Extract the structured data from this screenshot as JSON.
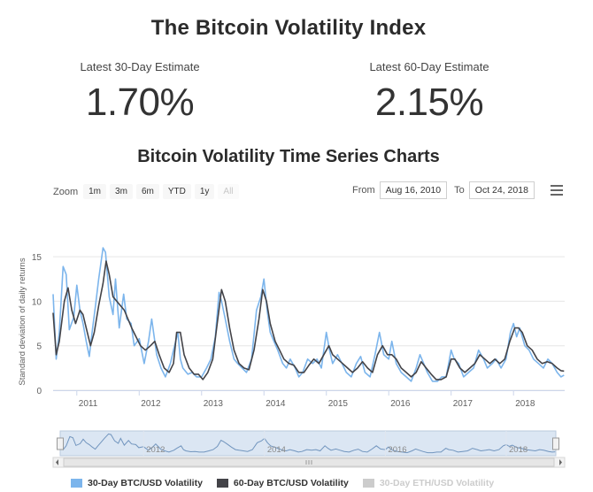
{
  "title": "The Bitcoin Volatility Index",
  "stats": [
    {
      "label": "Latest 30-Day Estimate",
      "value": "1.70%"
    },
    {
      "label": "Latest 60-Day Estimate",
      "value": "2.15%"
    }
  ],
  "subtitle": "Bitcoin Volatility Time Series Charts",
  "zoom": {
    "label": "Zoom",
    "buttons": [
      "1m",
      "3m",
      "6m",
      "YTD",
      "1y",
      "All"
    ]
  },
  "range": {
    "from_label": "From",
    "from": "Aug 16, 2010",
    "to_label": "To",
    "to": "Oct 24, 2018"
  },
  "colors": {
    "s30": "#7cb5ec",
    "s60": "#434348",
    "eth": "#cccccc",
    "grid": "#e6e6e6",
    "navfill": "#dbe6f3"
  },
  "chart_data": {
    "type": "line",
    "ylabel": "Standard deviation of daily returns",
    "ylim": [
      0,
      17
    ],
    "xlim": [
      2010.62,
      2018.82
    ],
    "yticks": [
      0,
      5,
      10,
      15
    ],
    "xticks": [
      {
        "v": 2011,
        "label": "2011"
      },
      {
        "v": 2012,
        "label": "2012"
      },
      {
        "v": 2013,
        "label": "2013"
      },
      {
        "v": 2014,
        "label": "2014"
      },
      {
        "v": 2015,
        "label": "2015"
      },
      {
        "v": 2016,
        "label": "2016"
      },
      {
        "v": 2017,
        "label": "2017"
      },
      {
        "v": 2018,
        "label": "2018"
      }
    ],
    "navigator_ticks": [
      {
        "v": 2012,
        "label": "2012"
      },
      {
        "v": 2014,
        "label": "2014"
      },
      {
        "v": 2016,
        "label": "2016"
      },
      {
        "v": 2018,
        "label": "2018"
      }
    ],
    "series": [
      {
        "name": "30-Day BTC/USD Volatility",
        "visible": true,
        "points": [
          [
            2010.62,
            10.8
          ],
          [
            2010.67,
            3.5
          ],
          [
            2010.72,
            6.5
          ],
          [
            2010.78,
            13.9
          ],
          [
            2010.83,
            13.0
          ],
          [
            2010.88,
            6.8
          ],
          [
            2010.95,
            8.2
          ],
          [
            2011.0,
            11.8
          ],
          [
            2011.05,
            9.0
          ],
          [
            2011.1,
            7.5
          ],
          [
            2011.15,
            5.5
          ],
          [
            2011.2,
            3.8
          ],
          [
            2011.25,
            6.8
          ],
          [
            2011.3,
            9.5
          ],
          [
            2011.35,
            12.5
          ],
          [
            2011.42,
            16.0
          ],
          [
            2011.46,
            15.5
          ],
          [
            2011.52,
            10.5
          ],
          [
            2011.58,
            8.5
          ],
          [
            2011.62,
            12.5
          ],
          [
            2011.68,
            7.0
          ],
          [
            2011.75,
            10.8
          ],
          [
            2011.8,
            8.0
          ],
          [
            2011.87,
            7.5
          ],
          [
            2011.92,
            5.0
          ],
          [
            2012.0,
            5.8
          ],
          [
            2012.08,
            3.0
          ],
          [
            2012.15,
            5.5
          ],
          [
            2012.2,
            8.0
          ],
          [
            2012.28,
            4.0
          ],
          [
            2012.35,
            2.5
          ],
          [
            2012.42,
            1.5
          ],
          [
            2012.5,
            3.0
          ],
          [
            2012.55,
            4.5
          ],
          [
            2012.62,
            6.5
          ],
          [
            2012.66,
            3.5
          ],
          [
            2012.7,
            2.5
          ],
          [
            2012.78,
            1.8
          ],
          [
            2012.85,
            2.0
          ],
          [
            2012.92,
            1.5
          ],
          [
            2013.0,
            1.5
          ],
          [
            2013.08,
            2.5
          ],
          [
            2013.15,
            3.5
          ],
          [
            2013.22,
            6.0
          ],
          [
            2013.28,
            11.0
          ],
          [
            2013.32,
            10.0
          ],
          [
            2013.38,
            8.0
          ],
          [
            2013.45,
            5.5
          ],
          [
            2013.52,
            3.5
          ],
          [
            2013.58,
            3.0
          ],
          [
            2013.65,
            2.5
          ],
          [
            2013.72,
            2.0
          ],
          [
            2013.8,
            3.5
          ],
          [
            2013.88,
            9.0
          ],
          [
            2013.95,
            10.5
          ],
          [
            2014.0,
            12.5
          ],
          [
            2014.05,
            9.0
          ],
          [
            2014.1,
            6.5
          ],
          [
            2014.16,
            5.5
          ],
          [
            2014.22,
            4.5
          ],
          [
            2014.3,
            3.0
          ],
          [
            2014.36,
            2.5
          ],
          [
            2014.42,
            3.5
          ],
          [
            2014.5,
            2.5
          ],
          [
            2014.56,
            1.5
          ],
          [
            2014.62,
            2.0
          ],
          [
            2014.7,
            3.5
          ],
          [
            2014.78,
            3.0
          ],
          [
            2014.85,
            3.5
          ],
          [
            2014.92,
            2.5
          ],
          [
            2015.0,
            6.5
          ],
          [
            2015.05,
            4.5
          ],
          [
            2015.1,
            3.0
          ],
          [
            2015.18,
            4.0
          ],
          [
            2015.25,
            3.0
          ],
          [
            2015.32,
            2.0
          ],
          [
            2015.4,
            1.5
          ],
          [
            2015.48,
            3.0
          ],
          [
            2015.55,
            3.8
          ],
          [
            2015.62,
            2.0
          ],
          [
            2015.7,
            1.5
          ],
          [
            2015.78,
            4.0
          ],
          [
            2015.85,
            6.5
          ],
          [
            2015.92,
            4.0
          ],
          [
            2016.0,
            3.5
          ],
          [
            2016.05,
            5.5
          ],
          [
            2016.12,
            3.0
          ],
          [
            2016.2,
            2.0
          ],
          [
            2016.28,
            1.5
          ],
          [
            2016.36,
            1.0
          ],
          [
            2016.44,
            2.5
          ],
          [
            2016.5,
            4.0
          ],
          [
            2016.56,
            3.0
          ],
          [
            2016.62,
            2.0
          ],
          [
            2016.7,
            1.0
          ],
          [
            2016.78,
            1.0
          ],
          [
            2016.85,
            1.5
          ],
          [
            2016.92,
            1.5
          ],
          [
            2017.0,
            4.5
          ],
          [
            2017.05,
            3.5
          ],
          [
            2017.12,
            3.0
          ],
          [
            2017.2,
            1.5
          ],
          [
            2017.28,
            2.0
          ],
          [
            2017.36,
            2.5
          ],
          [
            2017.44,
            4.5
          ],
          [
            2017.52,
            3.5
          ],
          [
            2017.58,
            2.5
          ],
          [
            2017.66,
            3.0
          ],
          [
            2017.72,
            3.5
          ],
          [
            2017.8,
            2.5
          ],
          [
            2017.88,
            3.5
          ],
          [
            2017.95,
            6.5
          ],
          [
            2018.0,
            7.5
          ],
          [
            2018.05,
            6.0
          ],
          [
            2018.1,
            7.0
          ],
          [
            2018.18,
            5.0
          ],
          [
            2018.25,
            4.5
          ],
          [
            2018.32,
            3.5
          ],
          [
            2018.4,
            3.0
          ],
          [
            2018.48,
            2.5
          ],
          [
            2018.55,
            3.5
          ],
          [
            2018.62,
            3.0
          ],
          [
            2018.7,
            2.0
          ],
          [
            2018.76,
            1.5
          ],
          [
            2018.81,
            1.7
          ]
        ]
      },
      {
        "name": "60-Day BTC/USD Volatility",
        "visible": true,
        "points": [
          [
            2010.62,
            8.7
          ],
          [
            2010.67,
            4.0
          ],
          [
            2010.72,
            5.5
          ],
          [
            2010.8,
            10.0
          ],
          [
            2010.86,
            11.5
          ],
          [
            2010.92,
            9.0
          ],
          [
            2010.98,
            7.5
          ],
          [
            2011.05,
            9.0
          ],
          [
            2011.1,
            8.5
          ],
          [
            2011.15,
            7.0
          ],
          [
            2011.22,
            5.0
          ],
          [
            2011.28,
            6.5
          ],
          [
            2011.35,
            9.5
          ],
          [
            2011.42,
            12.0
          ],
          [
            2011.47,
            14.5
          ],
          [
            2011.52,
            13.0
          ],
          [
            2011.58,
            10.5
          ],
          [
            2011.64,
            10.0
          ],
          [
            2011.7,
            9.5
          ],
          [
            2011.76,
            9.0
          ],
          [
            2011.82,
            8.0
          ],
          [
            2011.88,
            7.0
          ],
          [
            2011.95,
            6.0
          ],
          [
            2012.02,
            5.0
          ],
          [
            2012.1,
            4.5
          ],
          [
            2012.18,
            5.0
          ],
          [
            2012.25,
            5.5
          ],
          [
            2012.32,
            4.0
          ],
          [
            2012.4,
            2.5
          ],
          [
            2012.48,
            2.0
          ],
          [
            2012.55,
            3.0
          ],
          [
            2012.6,
            6.5
          ],
          [
            2012.66,
            6.5
          ],
          [
            2012.72,
            4.0
          ],
          [
            2012.8,
            2.5
          ],
          [
            2012.88,
            1.8
          ],
          [
            2012.95,
            1.8
          ],
          [
            2013.02,
            1.2
          ],
          [
            2013.1,
            2.0
          ],
          [
            2013.18,
            3.5
          ],
          [
            2013.25,
            7.5
          ],
          [
            2013.32,
            11.3
          ],
          [
            2013.38,
            10.0
          ],
          [
            2013.45,
            7.0
          ],
          [
            2013.52,
            4.5
          ],
          [
            2013.6,
            3.0
          ],
          [
            2013.68,
            2.5
          ],
          [
            2013.76,
            2.3
          ],
          [
            2013.84,
            4.5
          ],
          [
            2013.92,
            8.0
          ],
          [
            2013.98,
            11.3
          ],
          [
            2014.04,
            10.0
          ],
          [
            2014.1,
            7.5
          ],
          [
            2014.18,
            5.5
          ],
          [
            2014.25,
            4.5
          ],
          [
            2014.32,
            3.5
          ],
          [
            2014.4,
            3.0
          ],
          [
            2014.48,
            2.8
          ],
          [
            2014.56,
            2.0
          ],
          [
            2014.64,
            2.0
          ],
          [
            2014.72,
            2.8
          ],
          [
            2014.8,
            3.5
          ],
          [
            2014.88,
            3.0
          ],
          [
            2014.96,
            4.0
          ],
          [
            2015.04,
            5.0
          ],
          [
            2015.1,
            4.0
          ],
          [
            2015.18,
            3.5
          ],
          [
            2015.26,
            3.0
          ],
          [
            2015.34,
            2.5
          ],
          [
            2015.42,
            2.0
          ],
          [
            2015.5,
            2.5
          ],
          [
            2015.58,
            3.2
          ],
          [
            2015.66,
            2.5
          ],
          [
            2015.74,
            2.0
          ],
          [
            2015.82,
            4.0
          ],
          [
            2015.9,
            5.0
          ],
          [
            2015.98,
            4.0
          ],
          [
            2016.05,
            4.0
          ],
          [
            2016.12,
            3.5
          ],
          [
            2016.2,
            2.5
          ],
          [
            2016.28,
            2.0
          ],
          [
            2016.36,
            1.5
          ],
          [
            2016.44,
            2.0
          ],
          [
            2016.52,
            3.2
          ],
          [
            2016.6,
            2.5
          ],
          [
            2016.68,
            1.8
          ],
          [
            2016.76,
            1.2
          ],
          [
            2016.84,
            1.2
          ],
          [
            2016.92,
            1.5
          ],
          [
            2017.0,
            3.5
          ],
          [
            2017.06,
            3.5
          ],
          [
            2017.14,
            2.5
          ],
          [
            2017.22,
            2.0
          ],
          [
            2017.3,
            2.5
          ],
          [
            2017.38,
            3.0
          ],
          [
            2017.46,
            4.0
          ],
          [
            2017.54,
            3.5
          ],
          [
            2017.62,
            3.0
          ],
          [
            2017.7,
            3.5
          ],
          [
            2017.78,
            3.0
          ],
          [
            2017.86,
            3.5
          ],
          [
            2017.94,
            5.5
          ],
          [
            2018.02,
            7.0
          ],
          [
            2018.08,
            7.0
          ],
          [
            2018.14,
            6.5
          ],
          [
            2018.22,
            5.0
          ],
          [
            2018.3,
            4.5
          ],
          [
            2018.38,
            3.5
          ],
          [
            2018.46,
            3.0
          ],
          [
            2018.54,
            3.2
          ],
          [
            2018.62,
            3.0
          ],
          [
            2018.7,
            2.5
          ],
          [
            2018.76,
            2.2
          ],
          [
            2018.81,
            2.15
          ]
        ]
      },
      {
        "name": "30-Day ETH/USD Volatility",
        "visible": false,
        "points": []
      }
    ]
  }
}
